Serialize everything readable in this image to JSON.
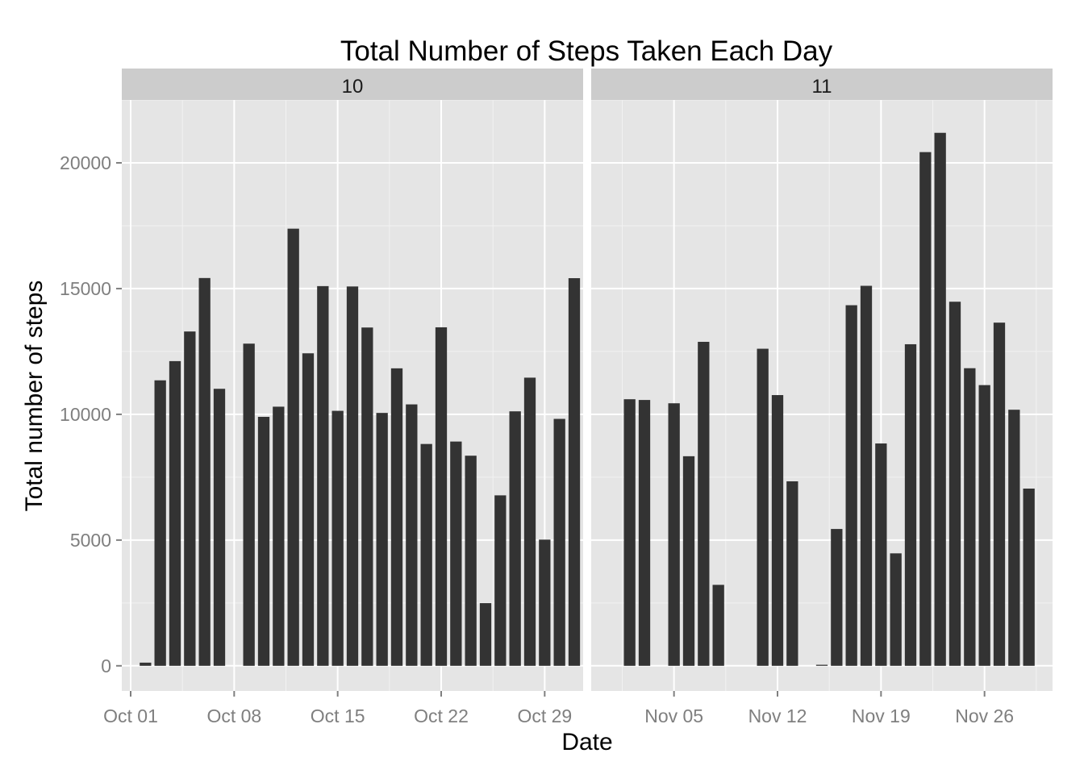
{
  "chart_data": {
    "type": "bar",
    "title": "Total Number of Steps Taken Each Day",
    "xlabel": "Date",
    "ylabel": "Total number of steps",
    "ylim": [
      -1000,
      22500
    ],
    "yticks": [
      0,
      5000,
      10000,
      15000,
      20000
    ],
    "grid": true,
    "legend": "none",
    "bar_color": "#333333",
    "panel_background": "#e5e5e5",
    "strip_background": "#cccccc",
    "panels": [
      {
        "strip": "10",
        "xrange": [
          "2012-10-01",
          "2012-10-31"
        ],
        "xticks": [
          {
            "date": "2012-10-01",
            "label": "Oct 01"
          },
          {
            "date": "2012-10-08",
            "label": "Oct 08"
          },
          {
            "date": "2012-10-15",
            "label": "Oct 15"
          },
          {
            "date": "2012-10-22",
            "label": "Oct 22"
          },
          {
            "date": "2012-10-29",
            "label": "Oct 29"
          }
        ],
        "x": [
          "2012-10-02",
          "2012-10-03",
          "2012-10-04",
          "2012-10-05",
          "2012-10-06",
          "2012-10-07",
          "2012-10-09",
          "2012-10-10",
          "2012-10-11",
          "2012-10-12",
          "2012-10-13",
          "2012-10-14",
          "2012-10-15",
          "2012-10-16",
          "2012-10-17",
          "2012-10-18",
          "2012-10-19",
          "2012-10-20",
          "2012-10-21",
          "2012-10-22",
          "2012-10-23",
          "2012-10-24",
          "2012-10-25",
          "2012-10-26",
          "2012-10-27",
          "2012-10-28",
          "2012-10-29",
          "2012-10-30",
          "2012-10-31"
        ],
        "values": [
          126,
          11352,
          12116,
          13294,
          15420,
          11015,
          12811,
          9900,
          10304,
          17382,
          12426,
          15098,
          10139,
          15084,
          13452,
          10056,
          11829,
          10395,
          8821,
          13460,
          8918,
          8355,
          2492,
          6778,
          10119,
          11458,
          5018,
          9819,
          15414
        ]
      },
      {
        "strip": "11",
        "xrange": [
          "2012-10-31",
          "2012-11-30"
        ],
        "xticks": [
          {
            "date": "2012-11-05",
            "label": "Nov 05"
          },
          {
            "date": "2012-11-12",
            "label": "Nov 12"
          },
          {
            "date": "2012-11-19",
            "label": "Nov 19"
          },
          {
            "date": "2012-11-26",
            "label": "Nov 26"
          }
        ],
        "x": [
          "2012-11-02",
          "2012-11-03",
          "2012-11-05",
          "2012-11-06",
          "2012-11-07",
          "2012-11-08",
          "2012-11-11",
          "2012-11-12",
          "2012-11-13",
          "2012-11-15",
          "2012-11-16",
          "2012-11-17",
          "2012-11-18",
          "2012-11-19",
          "2012-11-20",
          "2012-11-21",
          "2012-11-22",
          "2012-11-23",
          "2012-11-24",
          "2012-11-25",
          "2012-11-26",
          "2012-11-27",
          "2012-11-28",
          "2012-11-29"
        ],
        "values": [
          10600,
          10571,
          10439,
          8334,
          12883,
          3219,
          12608,
          10765,
          7336,
          41,
          5441,
          14339,
          15110,
          8841,
          4472,
          12787,
          20427,
          21194,
          14478,
          11834,
          11162,
          13646,
          10183,
          7047
        ]
      }
    ]
  }
}
